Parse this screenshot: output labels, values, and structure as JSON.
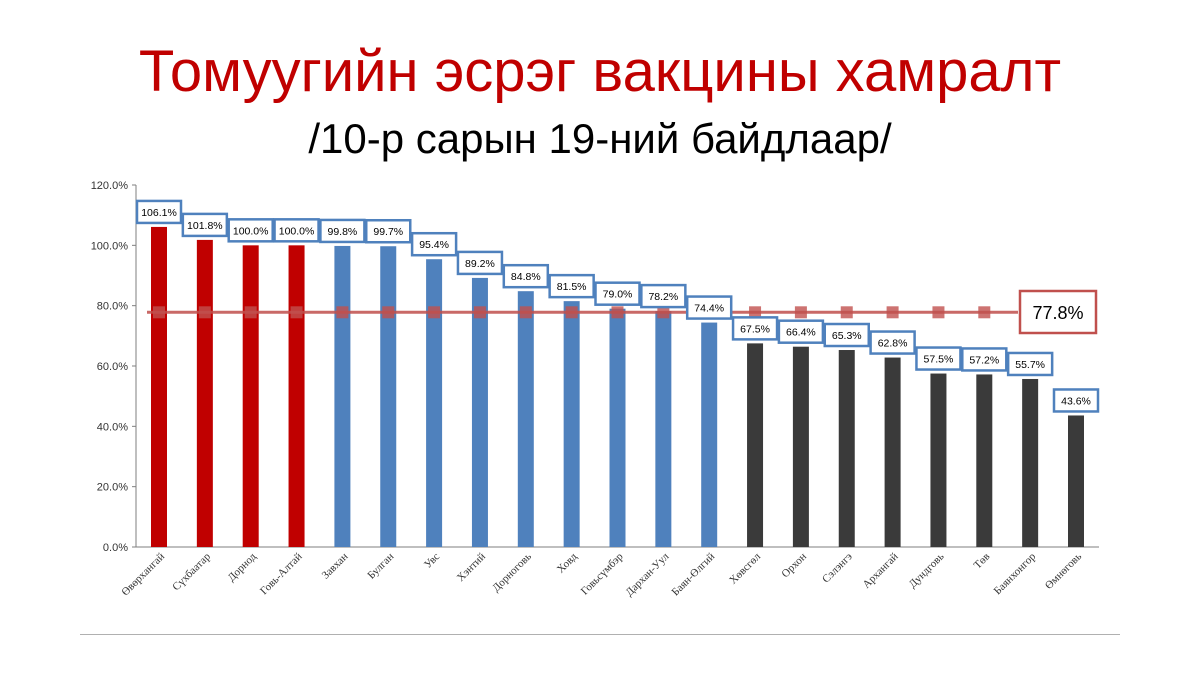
{
  "title": "Томуугийн эсрэг вакцины хамралт",
  "subtitle": "/10-р сарын 19-ний байдлаар/",
  "chart_data": {
    "type": "bar",
    "categories": [
      "Өвөрхангай",
      "Сүхбаатар",
      "Дорнод",
      "Говь-Алтай",
      "Завхан",
      "Булган",
      "Увс",
      "Хэнтий",
      "Дорноговь",
      "Ховд",
      "Говьсүмбэр",
      "Дархан-Уул",
      "Баян-Өлгий",
      "Хөвсгөл",
      "Орхон",
      "Сэлэнгэ",
      "Архангай",
      "Дундговь",
      "Төв",
      "Баянхонгор",
      "Өмнөговь"
    ],
    "values": [
      106.1,
      101.8,
      100.0,
      100.0,
      99.8,
      99.7,
      95.4,
      89.2,
      84.8,
      81.5,
      79.0,
      78.2,
      74.4,
      67.5,
      66.4,
      65.3,
      62.8,
      57.5,
      57.2,
      55.7,
      43.6
    ],
    "value_labels": [
      "106.1%",
      "101.8%",
      "100.0%",
      "100.0%",
      "99.8%",
      "99.7%",
      "95.4%",
      "89.2%",
      "84.8%",
      "81.5%",
      "79.0%",
      "78.2%",
      "74.4%",
      "67.5%",
      "66.4%",
      "65.3%",
      "62.8%",
      "57.5%",
      "57.2%",
      "55.7%",
      "43.6%"
    ],
    "bar_colors": [
      "#c00000",
      "#c00000",
      "#c00000",
      "#c00000",
      "#4f81bd",
      "#4f81bd",
      "#4f81bd",
      "#4f81bd",
      "#4f81bd",
      "#4f81bd",
      "#4f81bd",
      "#4f81bd",
      "#4f81bd",
      "#3a3a3a",
      "#3a3a3a",
      "#3a3a3a",
      "#3a3a3a",
      "#3a3a3a",
      "#3a3a3a",
      "#3a3a3a",
      "#3a3a3a"
    ],
    "reference_line": {
      "value": 77.8,
      "label": "77.8%",
      "color": "#c0504d"
    },
    "ylim": [
      0,
      120
    ],
    "yticks": [
      0,
      20,
      40,
      60,
      80,
      100,
      120
    ],
    "ytick_labels": [
      "0.0%",
      "20.0%",
      "40.0%",
      "60.0%",
      "80.0%",
      "100.0%",
      "120.0%"
    ],
    "label_box_color": "#4f81bd",
    "grid": false
  }
}
